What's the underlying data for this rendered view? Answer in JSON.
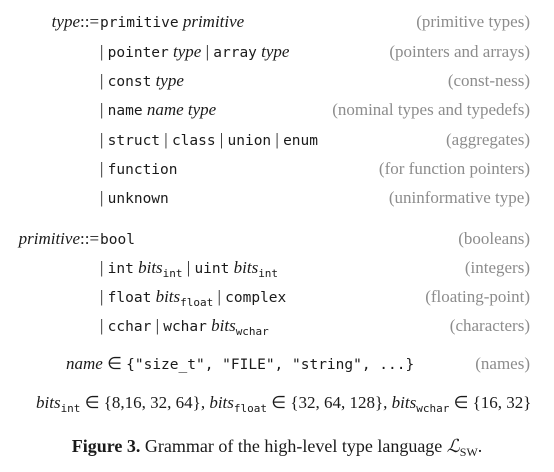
{
  "grammar": {
    "type_lhs": "type",
    "defeq": "::=",
    "alt": "|",
    "rules": [
      {
        "kw1": "primitive",
        "arg1": "primitive",
        "comment": "(primitive types)"
      },
      {
        "kw1": "pointer",
        "arg1": "type",
        "kw2": "array",
        "arg2": "type",
        "comment": "(pointers and arrays)"
      },
      {
        "kw1": "const",
        "arg1": "type",
        "comment": "(const-ness)"
      },
      {
        "kw1": "name",
        "arg1": "name type",
        "comment": "(nominal types and typedefs)"
      },
      {
        "kw1": "struct",
        "kw2": "class",
        "kw3": "union",
        "kw4": "enum",
        "comment": "(aggregates)"
      },
      {
        "kw1": "function",
        "comment": "(for function pointers)"
      },
      {
        "kw1": "unknown",
        "comment": "(uninformative type)"
      }
    ],
    "primitive_lhs": "primitive",
    "prim_rules": [
      {
        "kw1": "bool",
        "comment": "(booleans)"
      },
      {
        "kw1": "int",
        "arg1": "bits",
        "sub1": "int",
        "kw2": "uint",
        "arg2": "bits",
        "sub2": "int",
        "comment": "(integers)"
      },
      {
        "kw1": "float",
        "arg1": "bits",
        "sub1": "float",
        "kw2": "complex",
        "comment": "(floating-point)"
      },
      {
        "kw1": "cchar",
        "kw2": "wchar",
        "arg2": "bits",
        "sub2": "wchar",
        "comment": "(characters)"
      }
    ],
    "names": {
      "lhs": "name",
      "elem": "∈",
      "set": "{\"size_t\", \"FILE\", \"string\", ...}",
      "comment": "(names)"
    },
    "bits": {
      "b1": "bits",
      "s1": "int",
      "v1": "∈ {8,16, 32, 64},",
      "b2": "bits",
      "s2": "float",
      "v2": "∈ {32, 64, 128},",
      "b3": "bits",
      "s3": "wchar",
      "v3": "∈ {16, 32}"
    }
  },
  "caption": {
    "label": "Figure 3.",
    "text": "Grammar of the high-level type language ",
    "lang": "ℒ",
    "lang_sub": "SW",
    "end": "."
  }
}
